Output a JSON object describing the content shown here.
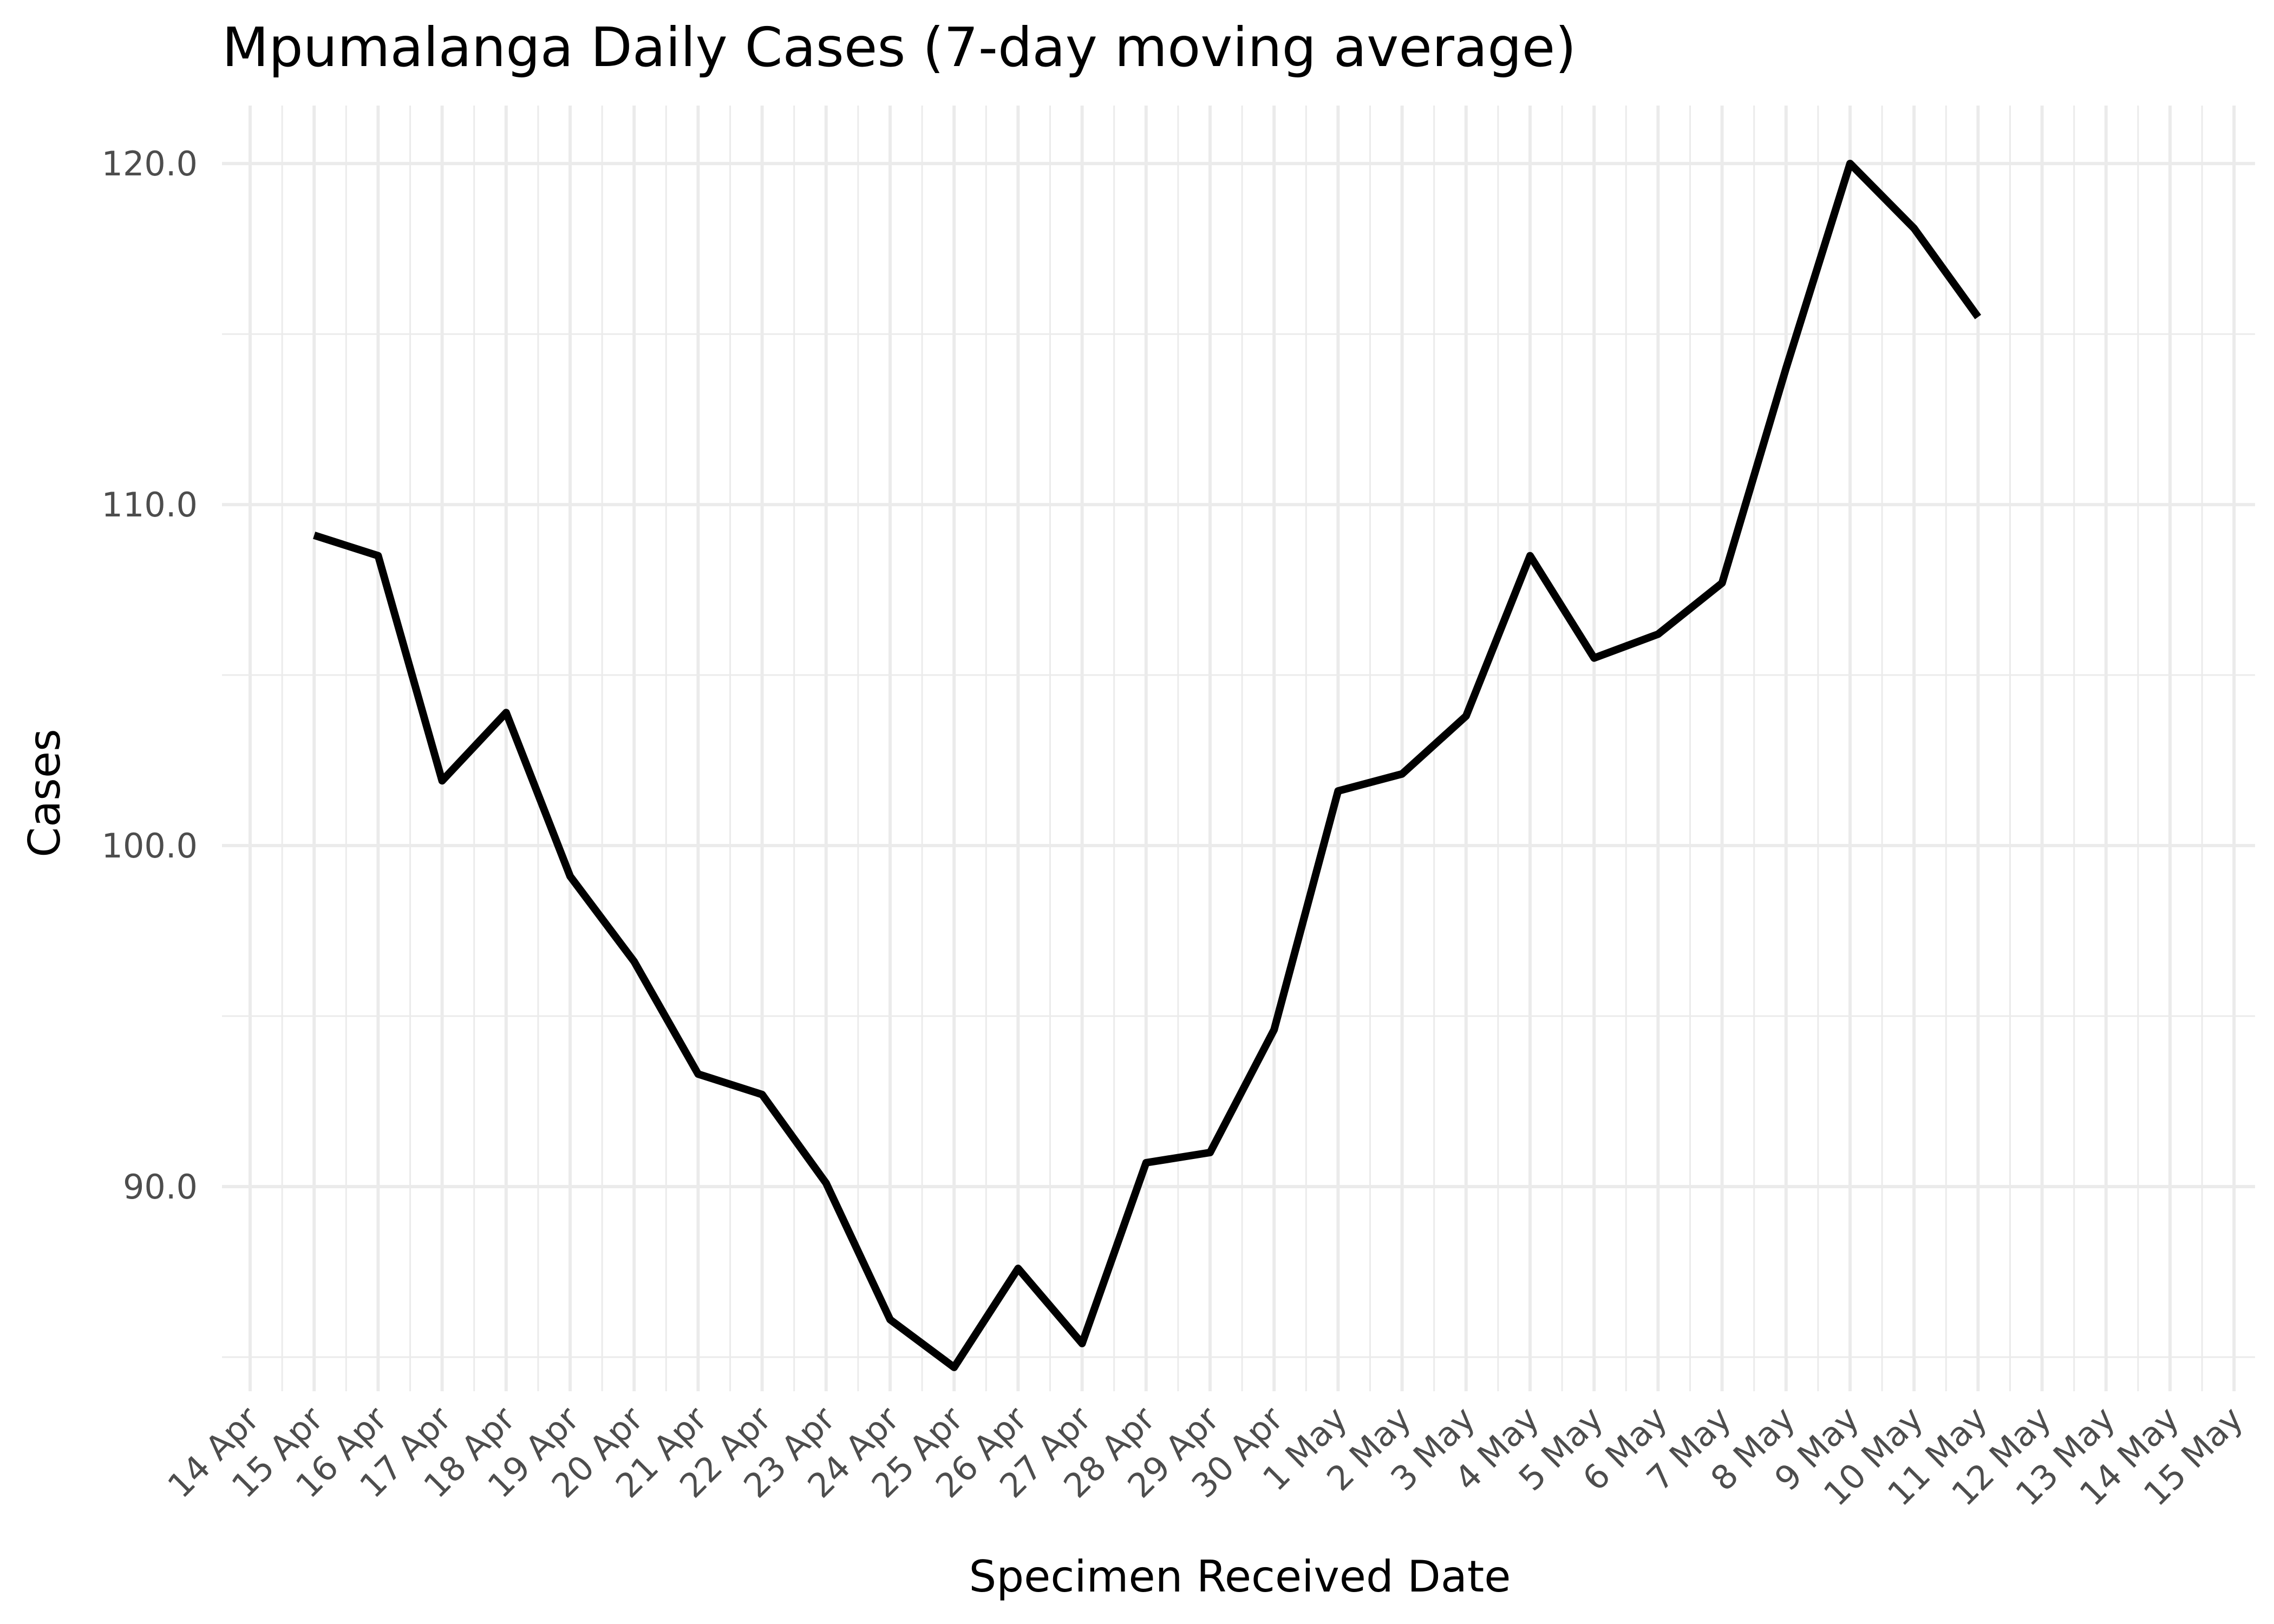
{
  "chart_data": {
    "type": "line",
    "title": "Mpumalanga Daily Cases (7-day moving average)",
    "xlabel": "Specimen Received Date",
    "ylabel": "Cases",
    "x_tick_labels": [
      "14 Apr",
      "15 Apr",
      "16 Apr",
      "17 Apr",
      "18 Apr",
      "19 Apr",
      "20 Apr",
      "21 Apr",
      "22 Apr",
      "23 Apr",
      "24 Apr",
      "25 Apr",
      "26 Apr",
      "27 Apr",
      "28 Apr",
      "29 Apr",
      "30 Apr",
      "1 May",
      "2 May",
      "3 May",
      "4 May",
      "5 May",
      "6 May",
      "7 May",
      "8 May",
      "9 May",
      "10 May",
      "11 May",
      "12 May",
      "13 May",
      "14 May",
      "15 May"
    ],
    "y_tick_labels": [
      "90.0",
      "100.0",
      "110.0",
      "120.0"
    ],
    "y_ticks": [
      90,
      100,
      110,
      120
    ],
    "ylim": [
      84,
      121.7
    ],
    "xlim": [
      "13 Apr",
      "15 May"
    ],
    "grid": true,
    "series": [
      {
        "x": [
          "15 Apr",
          "16 Apr",
          "17 Apr",
          "18 Apr",
          "19 Apr",
          "20 Apr",
          "21 Apr",
          "22 Apr",
          "23 Apr",
          "24 Apr",
          "25 Apr",
          "26 Apr",
          "27 Apr",
          "28 Apr",
          "29 Apr",
          "30 Apr",
          "1 May",
          "2 May",
          "3 May",
          "4 May",
          "5 May",
          "6 May",
          "7 May",
          "8 May",
          "9 May",
          "10 May",
          "11 May"
        ],
        "values": [
          109.1,
          108.5,
          101.9,
          103.9,
          99.1,
          96.6,
          93.3,
          92.7,
          90.1,
          86.1,
          84.7,
          87.6,
          85.4,
          90.7,
          91.0,
          94.6,
          101.6,
          102.1,
          103.8,
          108.5,
          105.5,
          106.2,
          107.7,
          114.0,
          120.0,
          118.1,
          115.5
        ],
        "color": "#000000"
      }
    ]
  }
}
